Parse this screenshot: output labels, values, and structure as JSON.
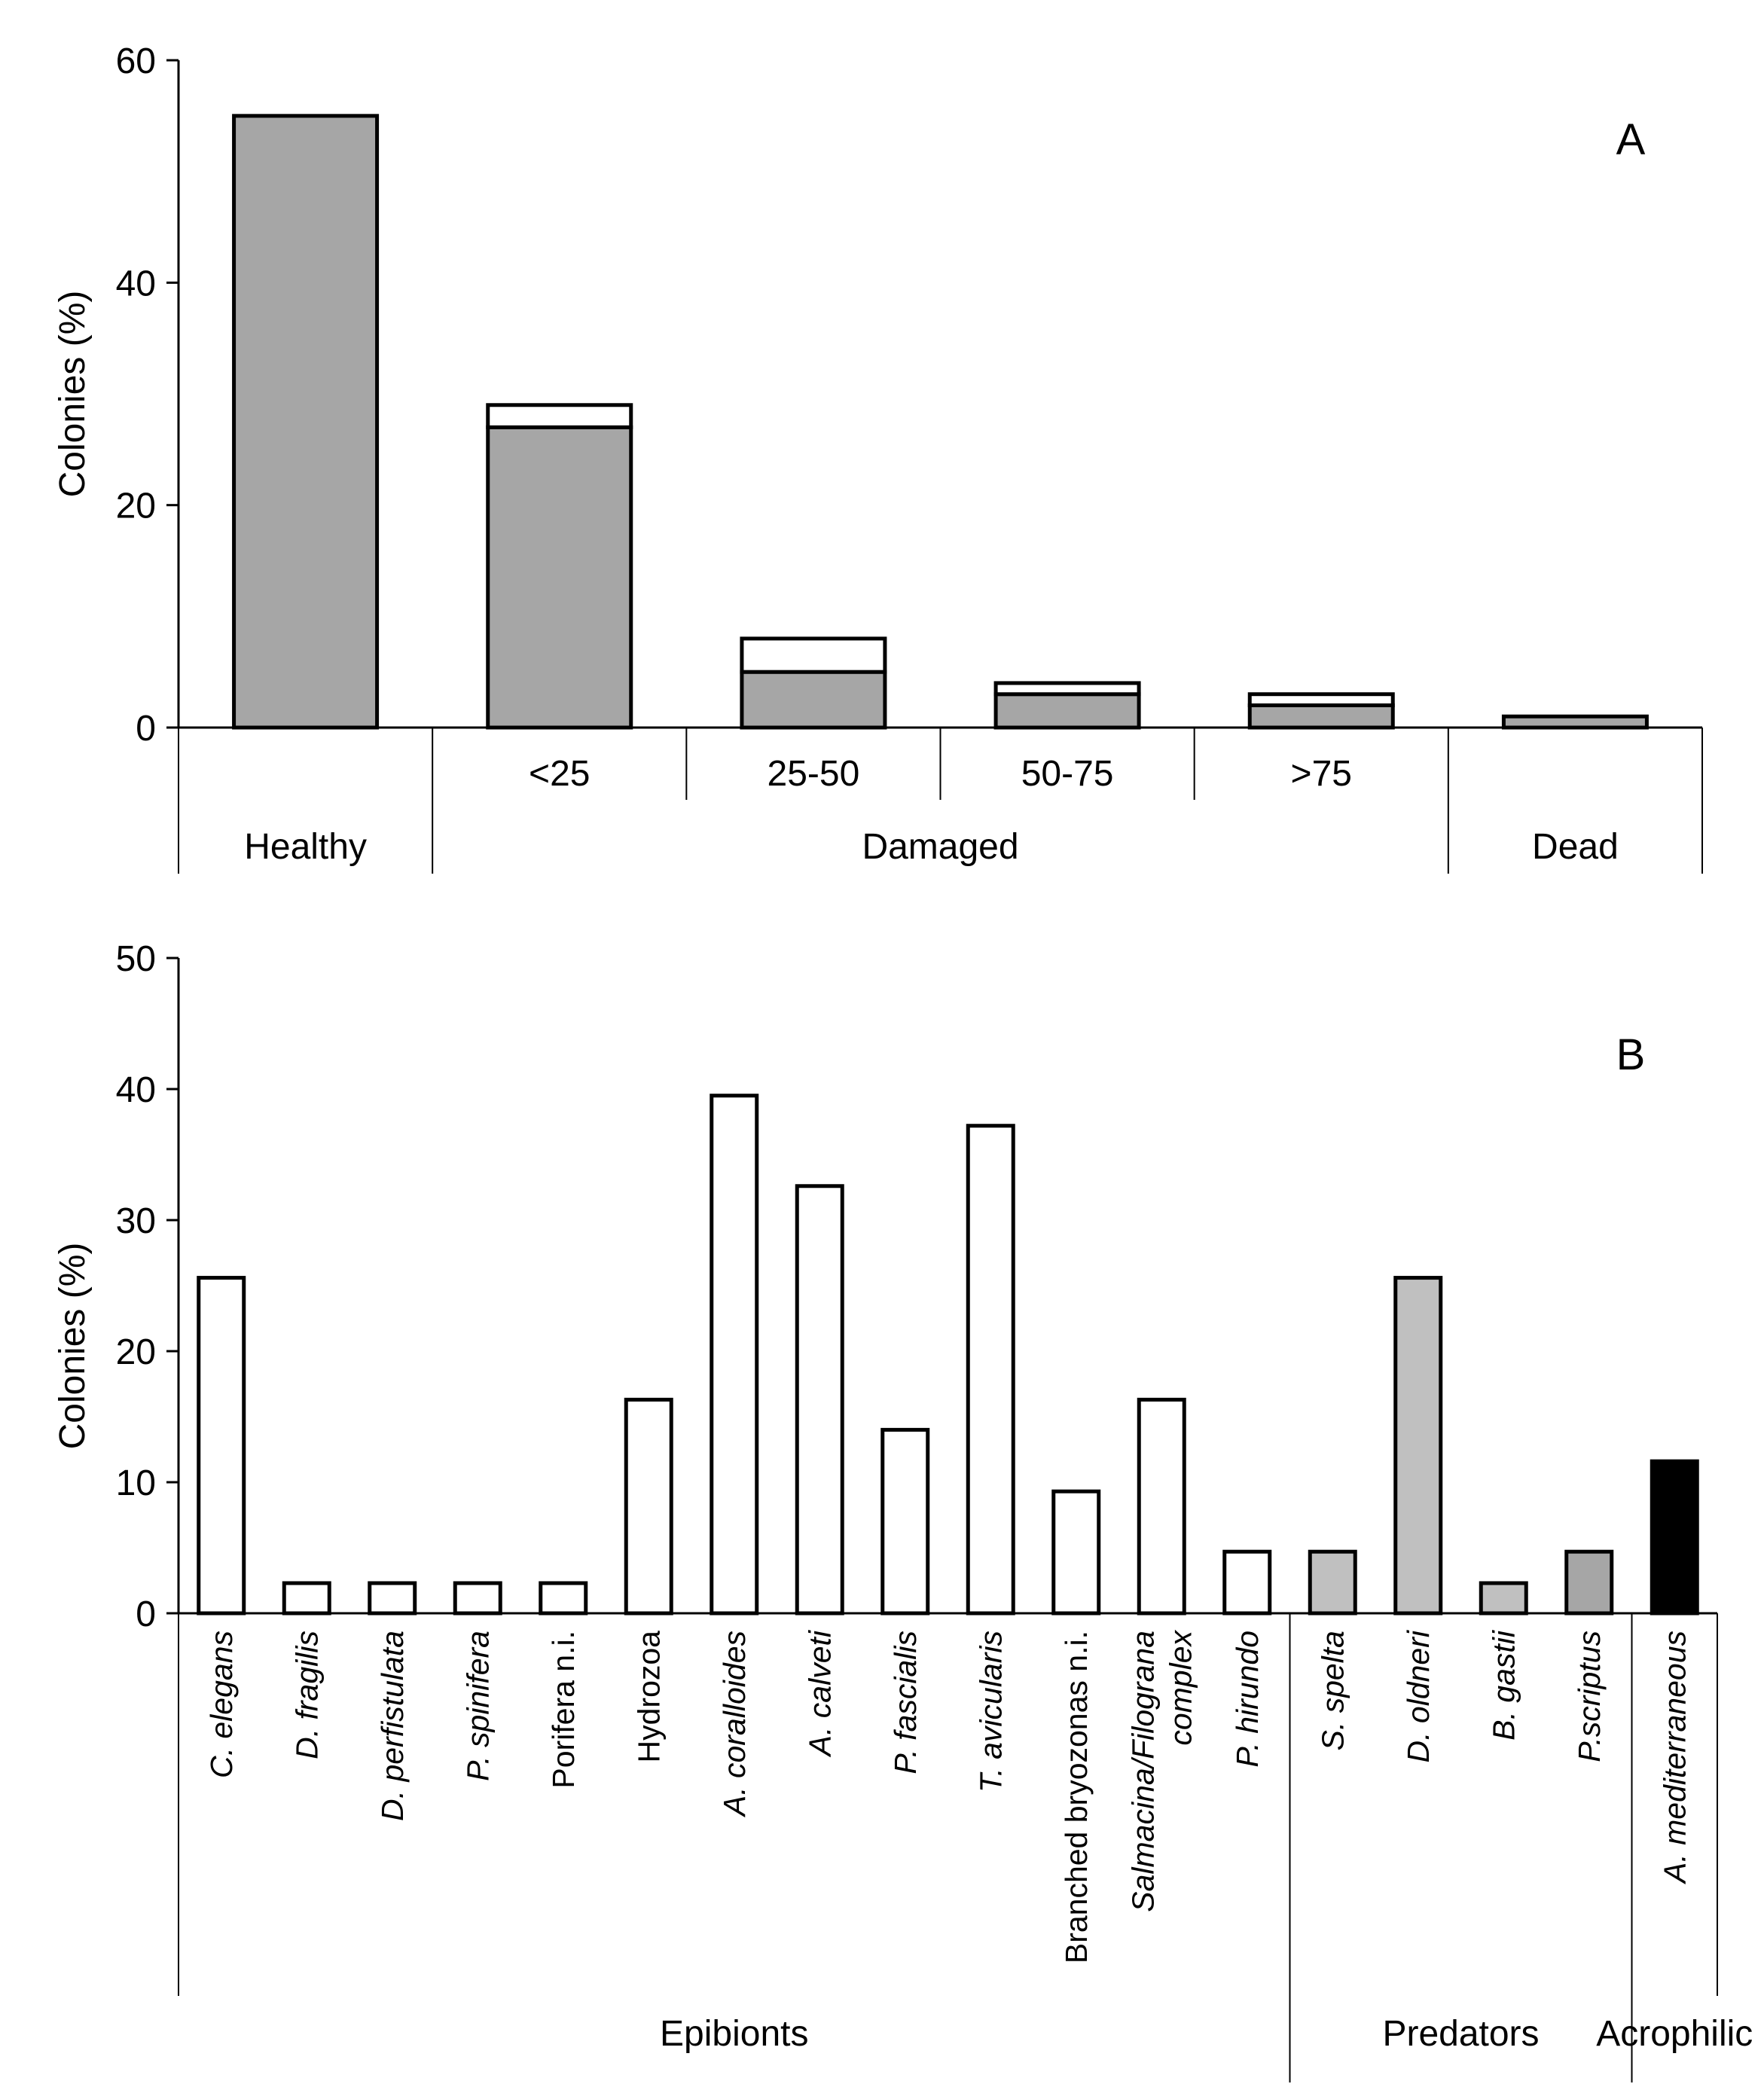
{
  "chart_data": [
    {
      "panel": "A",
      "type": "bar",
      "stacked": true,
      "ylabel": "Colonies (%)",
      "ylim": [
        0,
        60
      ],
      "yticks": [
        0,
        20,
        40,
        60
      ],
      "categories": [
        "Healthy",
        "<25",
        "25-50",
        "50-75",
        ">75",
        "Dead"
      ],
      "groups": [
        {
          "label": "Healthy",
          "categories": [
            "Healthy"
          ],
          "show_sublabels": false
        },
        {
          "label": "Damaged",
          "categories": [
            "<25",
            "25-50",
            "50-75",
            ">75"
          ],
          "show_sublabels": true
        },
        {
          "label": "Dead",
          "categories": [
            "Dead"
          ],
          "show_sublabels": false
        }
      ],
      "series": [
        {
          "name": "grey",
          "color": "#a6a6a6",
          "values": [
            55,
            27,
            5,
            3,
            2,
            1
          ]
        },
        {
          "name": "white",
          "color": "#ffffff",
          "values": [
            0,
            2,
            3,
            1,
            1,
            0
          ]
        }
      ]
    },
    {
      "panel": "B",
      "type": "bar",
      "ylabel": "Colonies (%)",
      "ylim": [
        0,
        50
      ],
      "yticks": [
        0,
        10,
        20,
        30,
        40,
        50
      ],
      "categories": [
        {
          "lines": [
            "C. elegans"
          ],
          "italic": true
        },
        {
          "lines": [
            "D. fragilis"
          ],
          "italic": true
        },
        {
          "lines": [
            "D. perfistulata"
          ],
          "italic": true
        },
        {
          "lines": [
            "P. spinifera"
          ],
          "italic": true
        },
        {
          "lines": [
            "Porifera n.i."
          ],
          "italic": false
        },
        {
          "lines": [
            "Hydrozoa"
          ],
          "italic": false
        },
        {
          "lines": [
            "A. coralloides"
          ],
          "italic": true
        },
        {
          "lines": [
            "A. calveti"
          ],
          "italic": true
        },
        {
          "lines": [
            "P. fascialis"
          ],
          "italic": true
        },
        {
          "lines": [
            "T. avicularis"
          ],
          "italic": true
        },
        {
          "lines": [
            "Branched bryozonas n.i."
          ],
          "italic": false
        },
        {
          "lines": [
            "Salmacina/Filograna",
            "complex"
          ],
          "italic": true
        },
        {
          "lines": [
            "P. hirundo"
          ],
          "italic": true
        },
        {
          "lines": [
            "S. spelta"
          ],
          "italic": true
        },
        {
          "lines": [
            "D. oldneri"
          ],
          "italic": true
        },
        {
          "lines": [
            "B. gastii"
          ],
          "italic": true
        },
        {
          "lines": [
            "P.scriptus"
          ],
          "italic": true
        },
        {
          "lines": [
            "A. mediterraneous"
          ],
          "italic": true
        }
      ],
      "values": [
        25.6,
        2.3,
        2.3,
        2.3,
        2.3,
        16.3,
        39.5,
        32.6,
        14.0,
        37.2,
        9.3,
        16.3,
        4.7,
        4.7,
        25.6,
        2.3,
        4.7,
        11.6
      ],
      "colors": [
        "#ffffff",
        "#ffffff",
        "#ffffff",
        "#ffffff",
        "#ffffff",
        "#ffffff",
        "#ffffff",
        "#ffffff",
        "#ffffff",
        "#ffffff",
        "#ffffff",
        "#ffffff",
        "#ffffff",
        "#c0c0c0",
        "#c0c0c0",
        "#c0c0c0",
        "#a6a6a6",
        "#000000"
      ],
      "groups": [
        {
          "label": "Epibionts",
          "count": 13
        },
        {
          "label": "Predators",
          "count": 4
        },
        {
          "label": "Acrophilic",
          "count": 1
        }
      ]
    }
  ],
  "panel_letters": {
    "a": "A",
    "b": "B"
  }
}
